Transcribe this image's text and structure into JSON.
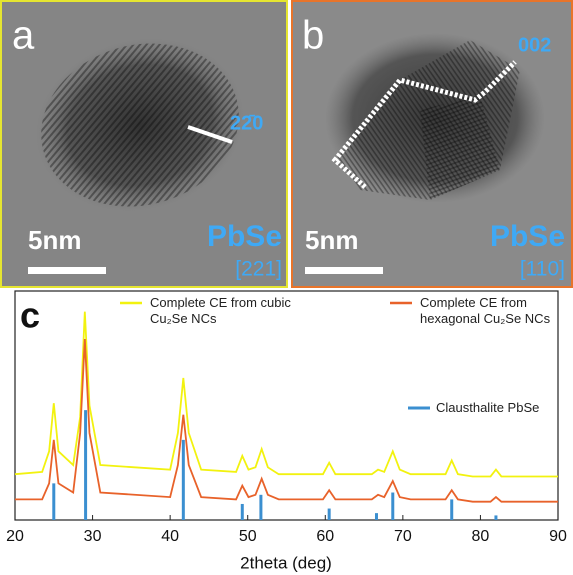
{
  "panels": [
    {
      "label": "a",
      "material": "PbSe",
      "zone_axis": "[221]",
      "scale_bar": "5nm",
      "plane": "22̄0"
    },
    {
      "label": "b",
      "material": "PbSe",
      "zone_axis": "[110]",
      "scale_bar": "5nm",
      "plane": "002"
    }
  ],
  "chart_data": {
    "type": "line",
    "panel_label": "c",
    "x_label": "2theta (deg)",
    "xlim": [
      20,
      90
    ],
    "xticks": [
      20,
      30,
      40,
      50,
      60,
      70,
      80,
      90
    ],
    "ylim": [
      0,
      100
    ],
    "x": [
      20,
      23.5,
      24.4,
      25,
      25.6,
      27.5,
      28.4,
      29,
      29.6,
      31,
      40,
      41,
      41.7,
      42.4,
      44,
      48.5,
      49.3,
      50.1,
      51,
      51.8,
      52.6,
      54,
      59.7,
      60.5,
      61.3,
      66,
      66.8,
      67.6,
      68.7,
      69.6,
      71,
      75.5,
      76.3,
      77.1,
      79,
      81.3,
      82,
      82.7,
      90
    ],
    "series": [
      {
        "name": "Complete CE from cubic Cu₂Se NCs",
        "color": "#f2f20f",
        "values": [
          20,
          21,
          30,
          51,
          30,
          24,
          45,
          91,
          50,
          24,
          22,
          38,
          62,
          38,
          22,
          21,
          28,
          22,
          23,
          31,
          23,
          20,
          20,
          25,
          20,
          20,
          22,
          21,
          30,
          22,
          20,
          20,
          26,
          20,
          19,
          19,
          22,
          19,
          19
        ]
      },
      {
        "name": "Complete CE from hexagonal Cu₂Se NCs",
        "color": "#e8622a",
        "values": [
          9,
          9,
          16,
          35,
          16,
          12,
          38,
          79,
          38,
          12,
          10,
          24,
          46,
          24,
          10,
          9,
          15,
          10,
          11,
          18,
          11,
          9,
          9,
          13,
          9,
          9,
          11,
          10,
          17,
          10,
          9,
          9,
          13,
          9,
          8,
          8,
          10,
          8,
          8
        ]
      }
    ],
    "reference": {
      "name": "Clausthalite PbSe",
      "color": "#3b8fd0",
      "x": [
        25,
        29.1,
        41.7,
        49.3,
        51.7,
        60.5,
        66.6,
        68.7,
        76.3,
        82
      ],
      "values": [
        16,
        48,
        35,
        7,
        11,
        5,
        3,
        12,
        9,
        2
      ]
    }
  }
}
